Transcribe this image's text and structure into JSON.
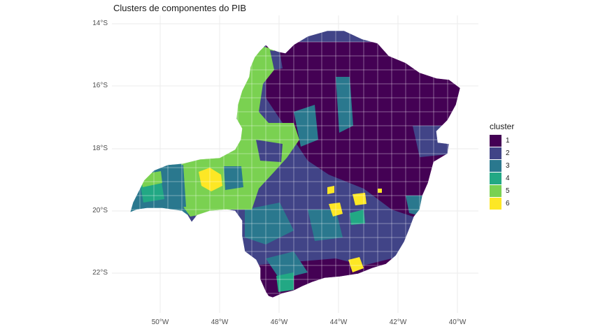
{
  "title": "Clusters de componentes do PIB",
  "y_ticks": [
    "14°S",
    "16°S",
    "18°S",
    "20°S",
    "22°S"
  ],
  "x_ticks": [
    "50°W",
    "48°W",
    "46°W",
    "44°W",
    "42°W",
    "40°W"
  ],
  "legend": {
    "title": "cluster",
    "items": [
      {
        "label": "1",
        "color": "#440154"
      },
      {
        "label": "2",
        "color": "#414487"
      },
      {
        "label": "3",
        "color": "#2A788E"
      },
      {
        "label": "4",
        "color": "#22A884"
      },
      {
        "label": "5",
        "color": "#7AD151"
      },
      {
        "label": "6",
        "color": "#FDE725"
      }
    ]
  },
  "map": {
    "region": "Minas Gerais municipalities",
    "fill_by": "cluster"
  }
}
